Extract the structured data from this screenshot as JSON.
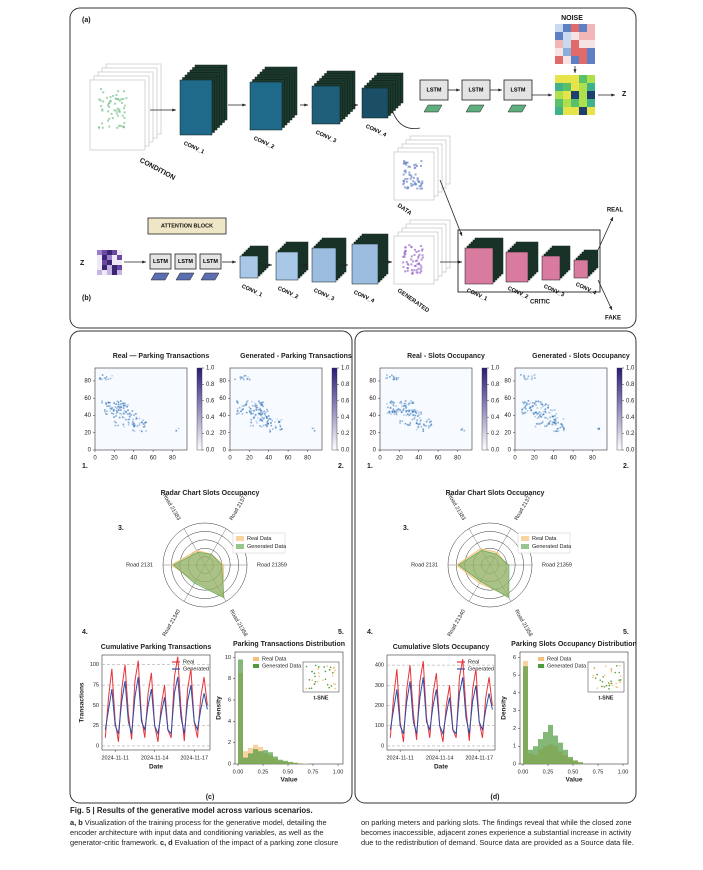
{
  "figure": {
    "panel_a": {
      "label": "(a)",
      "noise": "NOISE",
      "z": "Z",
      "condition": "CONDITION",
      "convs": [
        "CONV_1",
        "CONV_2",
        "CONV_3",
        "CONV_4"
      ],
      "lstms": [
        "LSTM",
        "LSTM",
        "LSTM"
      ]
    },
    "panel_b": {
      "label": "(b)",
      "attention": "ATTENTION BLOCK",
      "z": "Z",
      "lstms": [
        "LSTM",
        "LSTM",
        "LSTM"
      ],
      "convs": [
        "CONV_1",
        "CONV_2",
        "CONV_3",
        "CONV_4"
      ],
      "generated": "GENERATED",
      "data": "DATA",
      "critic": "CRITIC",
      "critic_convs": [
        "CONV_1",
        "CONV_2",
        "CONV_3",
        "CONV_4"
      ],
      "real": "REAL",
      "fake": "FAKE"
    },
    "panel_c": {
      "label": "(c)",
      "numbers": [
        "1.",
        "2.",
        "3.",
        "4.",
        "5."
      ]
    },
    "panel_d": {
      "label": "(d)",
      "numbers": [
        "1.",
        "2.",
        "3.",
        "4.",
        "5."
      ]
    }
  },
  "caption": {
    "title": "Fig. 5 | Results of the generative model across various scenarios.",
    "body": [
      "a, b",
      " Visualization of the training process for the generative model, detailing the encoder architecture with input data and conditioning variables, as well as the generator-critic framework. ",
      "c, d",
      " Evaluation of the impact of a parking zone closure on parking meters and parking slots. The findings reveal that while the closed zone becomes inaccessible, adjacent zones experience a substantial increase in activity due to the redistribution of demand. Source data are provided as a Source data file."
    ]
  },
  "chart_data": [
    {
      "type": "heatmap",
      "title": "Real — Parking Transactions",
      "xlim": [
        0,
        95
      ],
      "ylim": [
        0,
        95
      ],
      "xticks": [
        0,
        20,
        40,
        60,
        80
      ],
      "yticks": [
        0,
        20,
        40,
        60,
        80
      ],
      "clim": [
        0,
        1
      ],
      "cticks": [
        {
          "value": 0,
          "label": "0.0"
        },
        0.2,
        0.4,
        0.6,
        0.8,
        {
          "value": 1,
          "label": "1.0"
        }
      ],
      "colors": [
        "#ffffff",
        "#2b1b78"
      ]
    },
    {
      "type": "heatmap",
      "title": "Generated - Parking Transactions",
      "xlim": [
        0,
        95
      ],
      "ylim": [
        0,
        95
      ],
      "xticks": [
        0,
        20,
        40,
        60,
        80
      ],
      "yticks": [
        0,
        20,
        40,
        60,
        80
      ],
      "clim": [
        0,
        1
      ],
      "cticks": [
        {
          "value": 0,
          "label": "0.0"
        },
        0.2,
        0.4,
        0.6,
        0.8,
        {
          "value": 1,
          "label": "1.0"
        }
      ],
      "colors": [
        "#ffffff",
        "#2b1b78"
      ]
    },
    {
      "type": "radar",
      "title": "Radar Chart Slots Occupancy",
      "axes": [
        "Road 21383",
        "Road 21377",
        "Road 21359",
        "Road 21358",
        "Road 21340",
        "Road 2131"
      ],
      "rlim": [
        0,
        1
      ],
      "rticks": [
        0.2,
        0.4,
        0.6,
        0.8,
        1.0
      ],
      "series": [
        {
          "name": "Real Data",
          "color": "#f4c07a",
          "values": [
            0.4,
            0.3,
            0.45,
            0.85,
            0.45,
            0.8
          ]
        },
        {
          "name": "Generated Data",
          "color": "#6aad5e",
          "values": [
            0.35,
            0.3,
            0.4,
            0.9,
            0.5,
            0.75
          ]
        }
      ]
    },
    {
      "type": "line",
      "title": "Cumulative Parking Transactions",
      "xlabel": "Date",
      "ylabel": "Transactions",
      "xlim": [
        10,
        18.2
      ],
      "ylim": [
        -5,
        112
      ],
      "xticks": [
        {
          "value": 11,
          "label": "2024-11-11"
        },
        {
          "value": 14,
          "label": "2024-11-14"
        },
        {
          "value": 17,
          "label": "2024-11-17"
        }
      ],
      "yticks": [
        0,
        25,
        50,
        75,
        100
      ],
      "grid": true,
      "x": [
        10.25,
        10.5,
        10.75,
        11,
        11.25,
        11.5,
        11.75,
        12,
        12.25,
        12.5,
        12.75,
        13,
        13.25,
        13.5,
        13.75,
        14,
        14.25,
        14.5,
        14.75,
        15,
        15.25,
        15.5,
        15.75,
        16,
        16.25,
        16.5,
        16.75,
        17,
        17.25,
        17.5,
        17.75,
        18
      ],
      "series": [
        {
          "name": "Real",
          "color": "#e8333a",
          "values": [
            10,
            60,
            95,
            30,
            5,
            70,
            100,
            40,
            8,
            80,
            105,
            35,
            10,
            65,
            90,
            25,
            5,
            50,
            75,
            20,
            10,
            85,
            110,
            45,
            6,
            70,
            95,
            30,
            10,
            60,
            85,
            50
          ]
        },
        {
          "name": "Generated",
          "color": "#2a4fa8",
          "values": [
            20,
            45,
            70,
            25,
            15,
            55,
            80,
            30,
            15,
            60,
            85,
            30,
            20,
            50,
            70,
            25,
            15,
            40,
            60,
            20,
            15,
            65,
            85,
            35,
            15,
            55,
            75,
            30,
            20,
            45,
            65,
            45
          ]
        }
      ]
    },
    {
      "type": "histogram",
      "title": "Parking Transactions Distribution",
      "xlabel": "Value",
      "ylabel": "Density",
      "inset": "t-SNE",
      "xlim": [
        -0.03,
        1.05
      ],
      "ylim": [
        0,
        10.5
      ],
      "xticks": [
        {
          "value": 0,
          "label": "0.00"
        },
        0.25,
        {
          "value": 0.5,
          "label": "0.50"
        },
        0.75,
        {
          "value": 1,
          "label": "1.00"
        }
      ],
      "yticks": [
        0,
        2,
        4,
        6,
        8,
        10
      ],
      "bins": [
        0,
        0.05,
        0.1,
        0.15,
        0.2,
        0.25,
        0.3,
        0.35,
        0.4,
        0.45,
        0.5,
        0.55,
        0.6,
        0.65,
        0.7,
        0.75,
        0.8,
        0.85,
        0.9,
        0.95,
        1.0
      ],
      "series": [
        {
          "name": "Real Data",
          "color": "#f4c07a",
          "values": [
            8.5,
            1.2,
            1.5,
            1.8,
            1.6,
            1.0,
            0.8,
            0.5,
            0.3,
            0.2,
            0.1,
            0.15,
            0.05,
            0.05,
            0,
            0,
            0,
            0,
            0,
            0
          ]
        },
        {
          "name": "Generated Data",
          "color": "#4e9a3c",
          "values": [
            9.8,
            0.6,
            1.0,
            1.4,
            1.2,
            1.3,
            1.1,
            0.7,
            0.4,
            0.3,
            0.2,
            0.1,
            0.05,
            0,
            0,
            0,
            0,
            0,
            0,
            0
          ]
        }
      ]
    },
    {
      "type": "heatmap",
      "title": "Real - Slots Occupancy",
      "xlim": [
        0,
        95
      ],
      "ylim": [
        0,
        95
      ],
      "xticks": [
        0,
        20,
        40,
        60,
        80
      ],
      "yticks": [
        0,
        20,
        40,
        60,
        80
      ],
      "clim": [
        0,
        1
      ],
      "cticks": [
        {
          "value": 0,
          "label": "0.0"
        },
        0.2,
        0.4,
        0.6,
        0.8,
        {
          "value": 1,
          "label": "1.0"
        }
      ],
      "colors": [
        "#ffffff",
        "#2b1b78"
      ]
    },
    {
      "type": "heatmap",
      "title": "Generated - Slots Occupancy",
      "xlim": [
        0,
        95
      ],
      "ylim": [
        0,
        95
      ],
      "xticks": [
        0,
        20,
        40,
        60,
        80
      ],
      "yticks": [
        0,
        20,
        40,
        60,
        80
      ],
      "clim": [
        0,
        1
      ],
      "cticks": [
        {
          "value": 0,
          "label": "0.0"
        },
        0.2,
        0.4,
        0.6,
        0.8,
        {
          "value": 1,
          "label": "1.0"
        }
      ],
      "colors": [
        "#ffffff",
        "#2b1b78"
      ]
    },
    {
      "type": "radar",
      "title": "Radar Chart Slots Occupancy",
      "axes": [
        "Road 21383",
        "Road 21377",
        "Road 21359",
        "Road 21358",
        "Road 21340",
        "Road 2131"
      ],
      "rlim": [
        0,
        1
      ],
      "rticks": [
        0.2,
        0.4,
        0.6,
        0.8,
        1.0
      ],
      "series": [
        {
          "name": "Real Data",
          "color": "#f4c07a",
          "values": [
            0.45,
            0.35,
            0.4,
            0.85,
            0.5,
            0.8
          ]
        },
        {
          "name": "Generated Data",
          "color": "#6aad5e",
          "values": [
            0.4,
            0.3,
            0.45,
            0.9,
            0.45,
            0.75
          ]
        }
      ]
    },
    {
      "type": "line",
      "title": "Cumulative Slots Occupancy",
      "xlabel": "Date",
      "xlim": [
        10,
        18.2
      ],
      "ylim": [
        -20,
        450
      ],
      "xticks": [
        {
          "value": 11,
          "label": "2024-11-11"
        },
        {
          "value": 14,
          "label": "2024-11-14"
        },
        {
          "value": 17,
          "label": "2024-11-17"
        }
      ],
      "yticks": [
        0,
        100,
        200,
        300,
        400
      ],
      "grid": true,
      "x": [
        10.25,
        10.5,
        10.75,
        11,
        11.25,
        11.5,
        11.75,
        12,
        12.25,
        12.5,
        12.75,
        13,
        13.25,
        13.5,
        13.75,
        14,
        14.25,
        14.5,
        14.75,
        15,
        15.25,
        15.5,
        15.75,
        16,
        16.25,
        16.5,
        16.75,
        17,
        17.25,
        17.5,
        17.75,
        18
      ],
      "series": [
        {
          "name": "Real",
          "color": "#e8333a",
          "values": [
            40,
            240,
            380,
            120,
            20,
            280,
            400,
            160,
            30,
            320,
            420,
            140,
            40,
            260,
            360,
            100,
            20,
            200,
            300,
            80,
            40,
            340,
            430,
            180,
            25,
            280,
            380,
            120,
            40,
            240,
            340,
            200
          ]
        },
        {
          "name": "Generated",
          "color": "#2a4fa8",
          "values": [
            80,
            180,
            280,
            100,
            60,
            220,
            320,
            120,
            60,
            240,
            340,
            120,
            80,
            200,
            280,
            100,
            60,
            160,
            240,
            80,
            60,
            260,
            340,
            140,
            60,
            220,
            300,
            120,
            80,
            180,
            260,
            180
          ]
        }
      ]
    },
    {
      "type": "histogram",
      "title": "Parking Slots Occupancy Distribution",
      "xlabel": "Value",
      "ylabel": "Density",
      "inset": "t-SNE",
      "xlim": [
        -0.03,
        1.05
      ],
      "ylim": [
        0,
        6.3
      ],
      "xticks": [
        {
          "value": 0,
          "label": "0.00"
        },
        0.25,
        {
          "value": 0.5,
          "label": "0.50"
        },
        0.75,
        {
          "value": 1,
          "label": "1.00"
        }
      ],
      "yticks": [
        0,
        1,
        2,
        3,
        4,
        5,
        6
      ],
      "bins": [
        0,
        0.05,
        0.1,
        0.15,
        0.2,
        0.25,
        0.3,
        0.35,
        0.4,
        0.45,
        0.5,
        0.55,
        0.6,
        0.65,
        0.7,
        0.75,
        0.8,
        0.85,
        0.9,
        0.95,
        1.0
      ],
      "series": [
        {
          "name": "Real Data",
          "color": "#f4c07a",
          "values": [
            5.8,
            0.6,
            0.5,
            0.8,
            1.0,
            1.1,
            1.0,
            0.7,
            0.5,
            0.3,
            0.2,
            0.1,
            0,
            0,
            0,
            0,
            0,
            0,
            0,
            0
          ]
        },
        {
          "name": "Generated Data",
          "color": "#4e9a3c",
          "values": [
            5.5,
            0.8,
            1.0,
            1.4,
            1.8,
            2.2,
            1.6,
            1.2,
            0.8,
            0.4,
            0.2,
            0.1,
            0,
            0,
            0,
            0,
            0,
            0,
            0,
            0
          ]
        }
      ]
    }
  ]
}
